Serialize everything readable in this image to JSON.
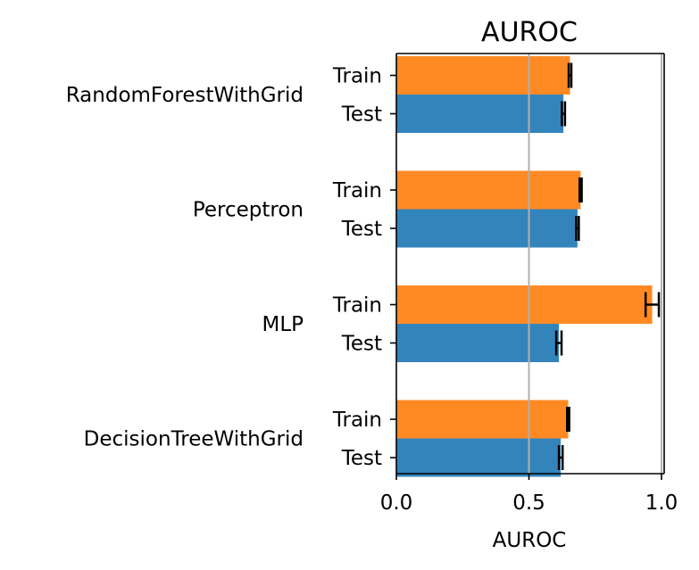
{
  "chart_data": {
    "type": "bar",
    "orientation": "horizontal",
    "title": "AUROC",
    "xlabel": "AUROC",
    "ylabel": "",
    "xlim": [
      0,
      1.0
    ],
    "xticks": [
      {
        "value": 0.0,
        "label": "0.0"
      },
      {
        "value": 0.5,
        "label": "0.5"
      },
      {
        "value": 1.0,
        "label": "1.0"
      }
    ],
    "reference_lines": [
      0.5,
      1.0
    ],
    "grid": false,
    "colors": {
      "Train": "#ff8a24",
      "Test": "#3484bc"
    },
    "groups": [
      {
        "name": "RandomForestWithGrid",
        "bars": [
          {
            "label": "Train",
            "value": 0.655,
            "error": 0.005
          },
          {
            "label": "Test",
            "value": 0.63,
            "error": 0.006
          }
        ]
      },
      {
        "name": "Perceptron",
        "bars": [
          {
            "label": "Train",
            "value": 0.695,
            "error": 0.004
          },
          {
            "label": "Test",
            "value": 0.683,
            "error": 0.005
          }
        ]
      },
      {
        "name": "MLP",
        "bars": [
          {
            "label": "Train",
            "value": 0.965,
            "error": 0.025
          },
          {
            "label": "Test",
            "value": 0.613,
            "error": 0.01
          }
        ]
      },
      {
        "name": "DecisionTreeWithGrid",
        "bars": [
          {
            "label": "Train",
            "value": 0.648,
            "error": 0.004
          },
          {
            "label": "Test",
            "value": 0.62,
            "error": 0.007
          }
        ]
      }
    ]
  }
}
